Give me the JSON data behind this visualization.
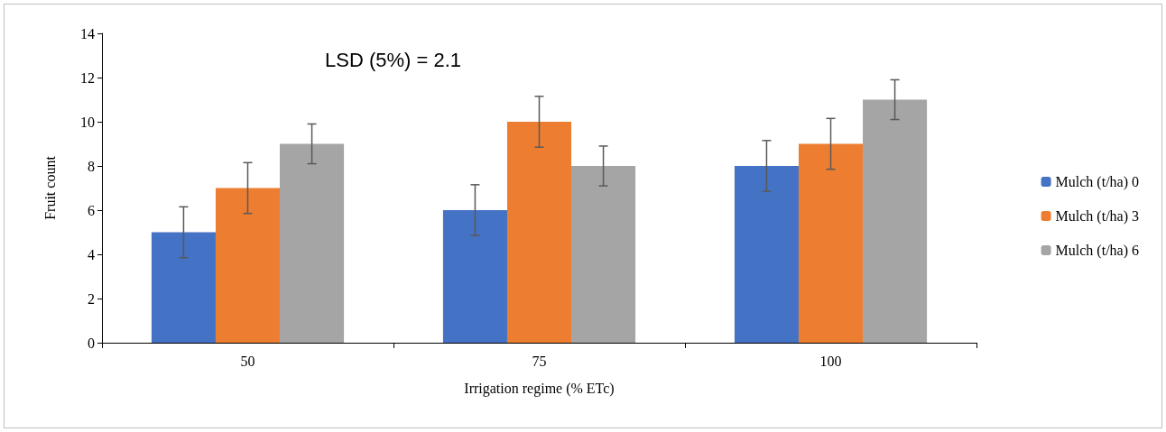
{
  "chart_data": {
    "type": "bar",
    "xlabel": "Irrigation regime (% ETc)",
    "ylabel": "Fruit count",
    "annotations": [
      "LSD (5%) = 2.1"
    ],
    "categories": [
      "50",
      "75",
      "100"
    ],
    "series": [
      {
        "name": "Mulch (t/ha) 0",
        "color": "#4472c4",
        "values": [
          5,
          6,
          8
        ],
        "errors": [
          1.15,
          1.15,
          1.15
        ]
      },
      {
        "name": "Mulch (t/ha) 3",
        "color": "#ed7d31",
        "values": [
          7,
          10,
          9
        ],
        "errors": [
          1.15,
          1.15,
          1.15
        ]
      },
      {
        "name": "Mulch (t/ha) 6",
        "color": "#a5a5a5",
        "values": [
          9,
          8,
          11
        ],
        "errors": [
          0.9,
          0.9,
          0.9
        ]
      }
    ],
    "ylim": [
      0,
      14
    ],
    "yticks": [
      0,
      2,
      4,
      6,
      8,
      10,
      12,
      14
    ],
    "grid": false,
    "legend": "right"
  }
}
